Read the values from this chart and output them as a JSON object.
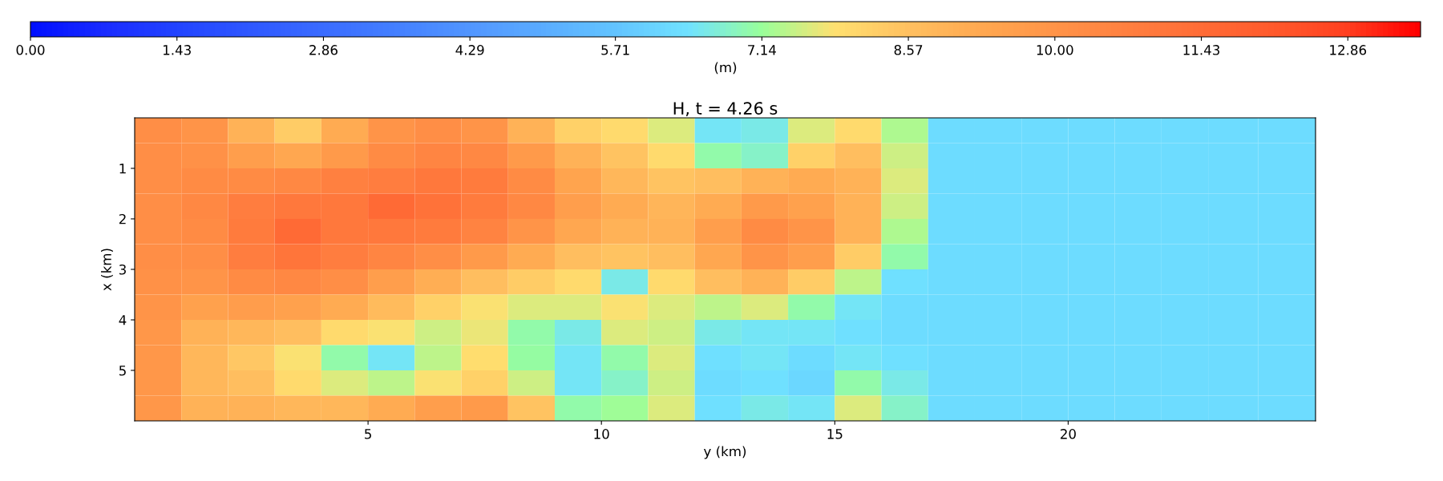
{
  "chart_data": {
    "type": "heatmap",
    "title": "H, t = 4.26 s",
    "xlabel": "y (km)",
    "ylabel": "x (km)",
    "clabel": "(m)",
    "x": [
      0.5,
      1.5,
      2.5,
      3.5,
      4.5,
      5.5,
      6.5,
      7.5,
      8.5,
      9.5,
      10.5,
      11.5,
      12.5,
      13.5,
      14.5,
      15.5,
      16.5,
      17.5,
      18.5,
      19.5,
      20.5,
      21.5,
      22.5,
      23.5,
      24.65
    ],
    "y": [
      0.25,
      0.75,
      1.25,
      1.75,
      2.25,
      2.75,
      3.25,
      3.75,
      4.25,
      4.75,
      5.25,
      5.75
    ],
    "xlim": [
      0,
      25.3
    ],
    "ylim": [
      6,
      0
    ],
    "xticks": [
      5,
      10,
      15,
      20
    ],
    "yticks": [
      1,
      2,
      3,
      4,
      5
    ],
    "clim": [
      0,
      13.57
    ],
    "cticks": [
      {
        "value": 0,
        "label": "0.00"
      },
      {
        "value": 1.43,
        "label": "1.43"
      },
      {
        "value": 2.86,
        "label": "2.86"
      },
      {
        "value": 4.29,
        "label": "4.29"
      },
      {
        "value": 5.71,
        "label": "5.71"
      },
      {
        "value": 7.14,
        "label": "7.14"
      },
      {
        "value": 8.57,
        "label": "8.57"
      },
      {
        "value": 10,
        "label": "10.00"
      },
      {
        "value": 11.43,
        "label": "11.43"
      },
      {
        "value": 12.86,
        "label": "12.86"
      }
    ],
    "colors": [
      "#0010ff",
      "#1a2cff",
      "#2244ff",
      "#2f58ff",
      "#3a6cff",
      "#4480ff",
      "#5296ff",
      "#5aacff",
      "#62c4ff",
      "#70e2ff",
      "#99ff99",
      "#ffe070",
      "#ffc060",
      "#ffa850",
      "#ff9448",
      "#ff8040",
      "#ff6c36",
      "#ff5a2c",
      "#ff4020",
      "#ff0000"
    ],
    "cells": [
      [
        10.2,
        10.0,
        9.0,
        8.3,
        9.2,
        10.0,
        10.2,
        10.0,
        9.0,
        8.2,
        8.0,
        7.6,
        6.5,
        6.6,
        7.6,
        8.0,
        7.3,
        6.3,
        6.3,
        6.3,
        6.3,
        6.3,
        6.3,
        6.3,
        6.3
      ],
      [
        10.2,
        10.1,
        9.6,
        9.3,
        9.8,
        10.3,
        10.5,
        10.4,
        9.8,
        9.0,
        8.5,
        8.0,
        7.0,
        6.8,
        8.2,
        8.6,
        7.5,
        6.3,
        6.3,
        6.3,
        6.3,
        6.3,
        6.3,
        6.3,
        6.3
      ],
      [
        10.2,
        10.3,
        10.3,
        10.4,
        10.7,
        10.8,
        11.0,
        10.9,
        10.3,
        9.4,
        8.8,
        8.5,
        8.6,
        9.0,
        9.2,
        9.0,
        7.6,
        6.3,
        6.3,
        6.3,
        6.3,
        6.3,
        6.3,
        6.3,
        6.3
      ],
      [
        10.2,
        10.4,
        10.8,
        11.0,
        11.0,
        11.5,
        11.2,
        10.9,
        10.4,
        9.6,
        9.2,
        8.9,
        9.2,
        9.8,
        9.5,
        9.0,
        7.5,
        6.3,
        6.3,
        6.3,
        6.3,
        6.3,
        6.3,
        6.3,
        6.3
      ],
      [
        10.2,
        10.3,
        10.9,
        11.5,
        11.0,
        11.0,
        10.9,
        10.6,
        10.0,
        9.3,
        9.0,
        9.0,
        9.6,
        10.3,
        10.0,
        9.0,
        7.3,
        6.3,
        6.3,
        6.3,
        6.3,
        6.3,
        6.3,
        6.3,
        6.3
      ],
      [
        10.2,
        10.2,
        10.8,
        11.1,
        10.8,
        10.5,
        10.2,
        9.8,
        9.2,
        8.6,
        8.5,
        8.6,
        9.3,
        10.0,
        9.6,
        8.3,
        7.0,
        6.3,
        6.3,
        6.3,
        6.3,
        6.3,
        6.3,
        6.3,
        6.3
      ],
      [
        10.1,
        10.0,
        10.3,
        10.4,
        10.2,
        9.6,
        9.1,
        8.6,
        8.3,
        8.0,
        6.6,
        8.0,
        8.6,
        9.0,
        8.3,
        7.4,
        6.4,
        6.3,
        6.3,
        6.3,
        6.3,
        6.3,
        6.3,
        6.3,
        6.3
      ],
      [
        10.0,
        9.5,
        9.7,
        9.5,
        9.2,
        8.7,
        8.2,
        7.8,
        7.6,
        7.6,
        7.8,
        7.6,
        7.4,
        7.6,
        7.0,
        6.5,
        6.3,
        6.3,
        6.3,
        6.3,
        6.3,
        6.3,
        6.3,
        6.3,
        6.3
      ],
      [
        9.9,
        9.0,
        8.8,
        8.6,
        8.0,
        7.8,
        7.5,
        7.7,
        7.0,
        6.6,
        7.6,
        7.5,
        6.6,
        6.5,
        6.5,
        6.4,
        6.3,
        6.3,
        6.3,
        6.3,
        6.3,
        6.3,
        6.3,
        6.3,
        6.3
      ],
      [
        9.9,
        8.8,
        8.4,
        7.8,
        7.0,
        6.5,
        7.4,
        7.9,
        7.1,
        6.5,
        7.0,
        7.6,
        6.4,
        6.5,
        6.3,
        6.5,
        6.4,
        6.3,
        6.3,
        6.3,
        6.3,
        6.3,
        6.3,
        6.3,
        6.3
      ],
      [
        9.9,
        8.8,
        8.6,
        8.0,
        7.6,
        7.4,
        7.8,
        8.2,
        7.5,
        6.5,
        6.8,
        7.5,
        6.3,
        6.4,
        6.2,
        7.0,
        6.6,
        6.3,
        6.3,
        6.3,
        6.3,
        6.3,
        6.3,
        6.3,
        6.3
      ],
      [
        9.9,
        9.0,
        9.0,
        8.8,
        8.8,
        9.2,
        9.6,
        9.8,
        8.5,
        7.0,
        7.2,
        7.6,
        6.4,
        6.6,
        6.5,
        7.6,
        6.8,
        6.3,
        6.3,
        6.3,
        6.3,
        6.3,
        6.3,
        6.3,
        6.3
      ]
    ]
  }
}
